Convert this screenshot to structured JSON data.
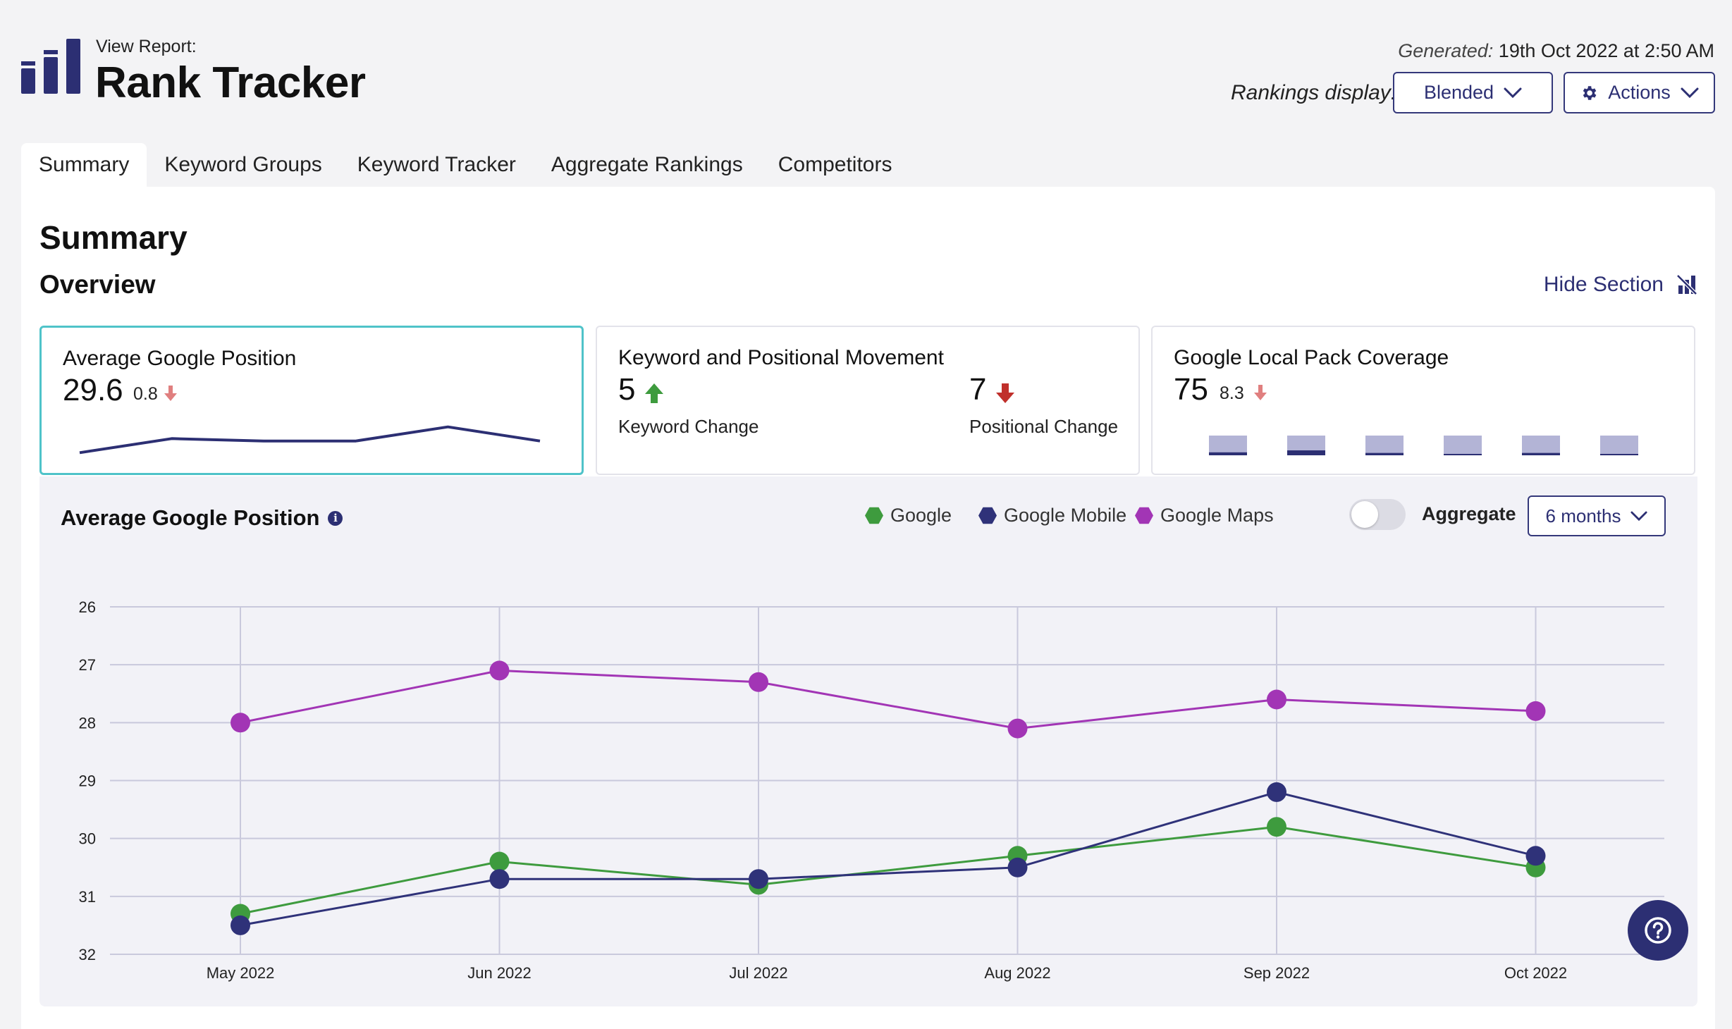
{
  "header": {
    "view_report_label": "View Report:",
    "title": "Rank Tracker",
    "generated_label": "Generated:",
    "generated_value": "19th Oct 2022 at 2:50 AM",
    "rankings_display_label": "Rankings display:",
    "rankings_display_value": "Blended",
    "actions_label": "Actions"
  },
  "tabs": [
    {
      "label": "Summary",
      "active": true
    },
    {
      "label": "Keyword Groups"
    },
    {
      "label": "Keyword Tracker"
    },
    {
      "label": "Aggregate Rankings"
    },
    {
      "label": "Competitors"
    }
  ],
  "main": {
    "page_title": "Summary",
    "section_title": "Overview",
    "hide_section_label": "Hide Section"
  },
  "cards": {
    "avg_position": {
      "title": "Average Google Position",
      "value": "29.6",
      "change": "0.8",
      "change_direction": "down",
      "sparkline": [
        31.3,
        30.7,
        30.8,
        30.8,
        30.2,
        30.8
      ]
    },
    "movement": {
      "title": "Keyword and Positional Movement",
      "keyword_value": "5",
      "keyword_direction": "up",
      "keyword_label": "Keyword Change",
      "positional_value": "7",
      "positional_direction": "down",
      "positional_label": "Positional Change"
    },
    "local_pack": {
      "title": "Google Local Pack Coverage",
      "value": "75",
      "change": "8.3",
      "change_direction": "down",
      "bar_fill": [
        0.15,
        0.25,
        0.12,
        0.0,
        0.12,
        0.05
      ]
    }
  },
  "chart_section": {
    "title": "Average Google Position",
    "info_icon": "info-icon",
    "legend": [
      {
        "label": "Google",
        "color": "#3e9b3e"
      },
      {
        "label": "Google Mobile",
        "color": "#2f3279"
      },
      {
        "label": "Google Maps",
        "color": "#a235b5"
      }
    ],
    "aggregate_label": "Aggregate",
    "aggregate_on": false,
    "range_label": "6 months"
  },
  "chart_data": {
    "type": "line",
    "x": [
      "May 2022",
      "Jun 2022",
      "Jul 2022",
      "Aug 2022",
      "Sep 2022",
      "Oct 2022"
    ],
    "y_ticks": [
      26,
      27,
      28,
      29,
      30,
      31,
      32
    ],
    "ylim": [
      26,
      32
    ],
    "y_reversed": true,
    "grid": true,
    "series": [
      {
        "name": "Google Maps",
        "color": "#a235b5",
        "values": [
          28.0,
          27.1,
          27.3,
          28.1,
          27.6,
          27.8
        ]
      },
      {
        "name": "Google",
        "color": "#3e9b3e",
        "values": [
          31.3,
          30.4,
          30.8,
          30.3,
          29.8,
          30.5
        ]
      },
      {
        "name": "Google Mobile",
        "color": "#2f3279",
        "values": [
          31.5,
          30.7,
          30.7,
          30.5,
          29.2,
          30.3
        ]
      }
    ]
  },
  "colors": {
    "accent": "#2c2f73",
    "selected_border": "#4fc3c9",
    "up": "#3e9b3e",
    "down_strong": "#c0302b",
    "down_soft": "#e07f7f",
    "bar_bg": "#b3b4d6"
  },
  "help_icon": "question-circle-icon"
}
